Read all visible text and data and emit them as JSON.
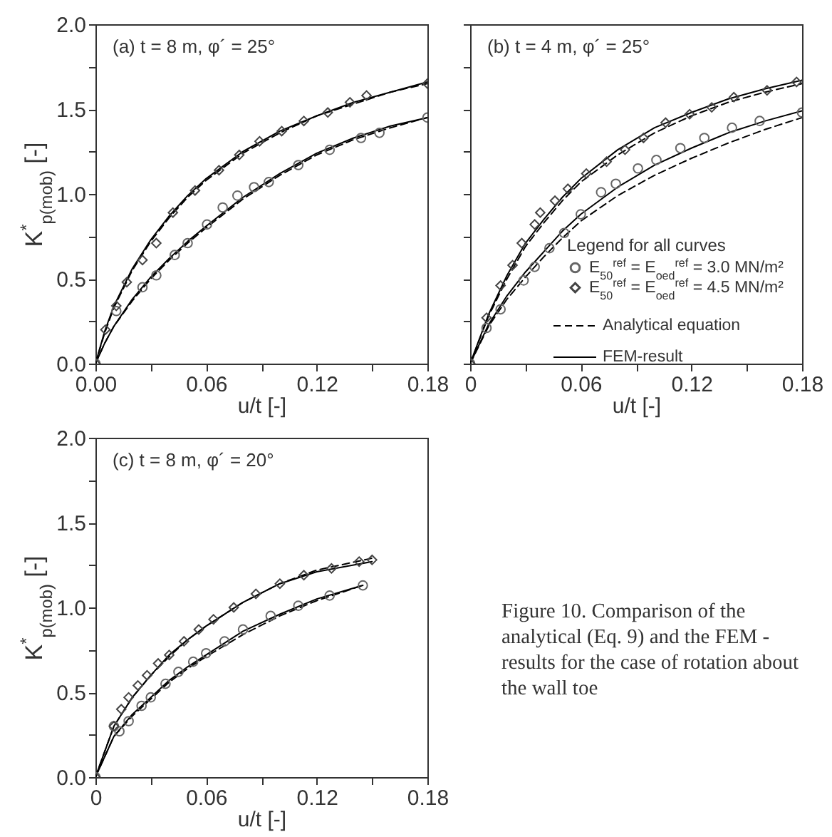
{
  "chart_data": [
    {
      "type": "line",
      "xlabel": "u/t  [-]",
      "ylabel": "K$^{*}$$_{p(mob)}$  [-]",
      "annotations": [
        "(a) t = 8 m, φ´ = 25°"
      ],
      "xlim": [
        0,
        0.18
      ],
      "ylim": [
        0,
        2
      ],
      "xticks": [
        {
          "value": 0,
          "label": "0.00"
        },
        {
          "value": 0.03,
          "label": null
        },
        0.06,
        {
          "value": 0.09,
          "label": null
        },
        0.12,
        {
          "value": 0.15,
          "label": null
        },
        0.18
      ],
      "yticks": [
        {
          "value": 0,
          "label": "0.0"
        },
        {
          "value": 0.25,
          "label": null
        },
        0.5,
        {
          "value": 0.75,
          "label": null
        },
        {
          "value": 1,
          "label": "1.0"
        },
        {
          "value": 1.25,
          "label": null
        },
        1.5,
        {
          "value": 1.75,
          "label": null
        },
        {
          "value": 2,
          "label": "2.0"
        }
      ],
      "series": [
        {
          "type": "scatter",
          "marker": "circle",
          "color": "#666666",
          "x": [
            0,
            0.0113,
            0.0255,
            0.033,
            0.043,
            0.05,
            0.0605,
            0.069,
            0.077,
            0.086,
            0.094,
            0.11,
            0.127,
            0.144,
            0.154,
            0.18
          ],
          "values": [
            0,
            0.31,
            0.45,
            0.52,
            0.64,
            0.71,
            0.82,
            0.92,
            0.99,
            1.04,
            1.07,
            1.17,
            1.26,
            1.33,
            1.36,
            1.45
          ]
        },
        {
          "type": "scatter",
          "marker": "diamond",
          "color": "#444444",
          "x": [
            0,
            0.0054,
            0.0113,
            0.017,
            0.0255,
            0.033,
            0.042,
            0.054,
            0.067,
            0.078,
            0.089,
            0.101,
            0.113,
            0.126,
            0.138,
            0.147,
            0.18
          ],
          "values": [
            0,
            0.2,
            0.34,
            0.48,
            0.61,
            0.71,
            0.89,
            1.02,
            1.14,
            1.23,
            1.31,
            1.37,
            1.43,
            1.48,
            1.54,
            1.58,
            1.65
          ]
        },
        {
          "type": "line",
          "line_style": "dashed",
          "color": "#000000",
          "x": [
            0,
            0.005,
            0.01,
            0.02,
            0.03,
            0.04,
            0.05,
            0.06,
            0.08,
            0.1,
            0.12,
            0.14,
            0.16,
            0.18
          ],
          "values": [
            0,
            0.12,
            0.22,
            0.37,
            0.5,
            0.61,
            0.71,
            0.8,
            0.97,
            1.11,
            1.23,
            1.32,
            1.39,
            1.45
          ]
        },
        {
          "type": "line",
          "line_style": "dashed",
          "color": "#000000",
          "x": [
            0,
            0.005,
            0.01,
            0.02,
            0.03,
            0.04,
            0.05,
            0.06,
            0.08,
            0.1,
            0.12,
            0.14,
            0.16,
            0.18
          ],
          "values": [
            0,
            0.18,
            0.33,
            0.55,
            0.72,
            0.86,
            0.98,
            1.08,
            1.24,
            1.36,
            1.46,
            1.53,
            1.6,
            1.65
          ]
        },
        {
          "type": "line",
          "line_style": "solid",
          "color": "#000000",
          "x": [
            0,
            0.005,
            0.01,
            0.02,
            0.03,
            0.04,
            0.05,
            0.06,
            0.08,
            0.1,
            0.12,
            0.14,
            0.16,
            0.18
          ],
          "values": [
            0,
            0.12,
            0.22,
            0.38,
            0.51,
            0.62,
            0.72,
            0.81,
            0.98,
            1.12,
            1.24,
            1.33,
            1.4,
            1.45
          ]
        },
        {
          "type": "line",
          "line_style": "solid",
          "color": "#000000",
          "x": [
            0,
            0.005,
            0.01,
            0.02,
            0.03,
            0.04,
            0.05,
            0.06,
            0.08,
            0.1,
            0.12,
            0.14,
            0.16,
            0.18
          ],
          "values": [
            0,
            0.19,
            0.34,
            0.56,
            0.73,
            0.87,
            0.99,
            1.09,
            1.25,
            1.37,
            1.46,
            1.54,
            1.6,
            1.66
          ]
        }
      ]
    },
    {
      "type": "line",
      "xlabel": "u/t  [-]",
      "annotations": [
        "(b) t = 4 m, φ´ = 25°"
      ],
      "legend": "bottom right",
      "legend_title": "Legend for all curves",
      "tick_labels": "x",
      "xlim": [
        0,
        0.18
      ],
      "ylim": [
        0,
        2
      ],
      "xticks": [
        0,
        {
          "value": 0.03,
          "label": null
        },
        0.06,
        {
          "value": 0.09,
          "label": null
        },
        0.12,
        {
          "value": 0.15,
          "label": null
        },
        0.18
      ],
      "yticks": [
        0,
        0.25,
        0.5,
        0.75,
        1,
        1.25,
        1.5,
        1.75,
        2
      ],
      "series": [
        {
          "name": "E$_{50}$$^{ref}$ = E$_{oed}$$^{ref}$ = 3.0 MN/m²",
          "type": "scatter",
          "marker": "circle",
          "color": "#666666",
          "x": [
            0,
            0.0089,
            0.0165,
            0.029,
            0.035,
            0.043,
            0.051,
            0.06,
            0.071,
            0.079,
            0.091,
            0.101,
            0.114,
            0.127,
            0.142,
            0.157,
            0.18
          ],
          "values": [
            0,
            0.21,
            0.32,
            0.49,
            0.57,
            0.68,
            0.77,
            0.88,
            1.01,
            1.06,
            1.15,
            1.2,
            1.27,
            1.33,
            1.39,
            1.43,
            1.48
          ]
        },
        {
          "name": "E$_{50}$$^{ref}$ = E$_{oed}$$^{ref}$ = 4.5 MN/m²",
          "type": "scatter",
          "marker": "diamond",
          "color": "#444444",
          "x": [
            0,
            0.0089,
            0.0165,
            0.023,
            0.028,
            0.035,
            0.038,
            0.046,
            0.053,
            0.063,
            0.074,
            0.084,
            0.094,
            0.106,
            0.119,
            0.131,
            0.143,
            0.161,
            0.177
          ],
          "values": [
            0,
            0.27,
            0.46,
            0.58,
            0.71,
            0.82,
            0.89,
            0.96,
            1.03,
            1.12,
            1.19,
            1.26,
            1.33,
            1.42,
            1.47,
            1.51,
            1.57,
            1.61,
            1.66
          ]
        },
        {
          "name": "Analytical equation",
          "type": "line",
          "line_style": "dashed",
          "color": "#000000",
          "x": [
            0,
            0.01,
            0.02,
            0.03,
            0.04,
            0.05,
            0.06,
            0.08,
            0.1,
            0.12,
            0.14,
            0.16,
            0.18
          ],
          "values": [
            0,
            0.22,
            0.38,
            0.51,
            0.63,
            0.74,
            0.84,
            0.99,
            1.11,
            1.21,
            1.3,
            1.38,
            1.45
          ]
        },
        {
          "type": "line",
          "line_style": "dashed",
          "color": "#000000",
          "x": [
            0,
            0.01,
            0.02,
            0.03,
            0.04,
            0.05,
            0.06,
            0.08,
            0.1,
            0.12,
            0.14,
            0.16,
            0.18
          ],
          "values": [
            0,
            0.28,
            0.5,
            0.69,
            0.83,
            0.96,
            1.07,
            1.23,
            1.36,
            1.46,
            1.54,
            1.6,
            1.65
          ]
        },
        {
          "name": "FEM-result",
          "type": "line",
          "line_style": "solid",
          "color": "#000000",
          "x": [
            0,
            0.01,
            0.02,
            0.03,
            0.04,
            0.05,
            0.06,
            0.08,
            0.1,
            0.12,
            0.14,
            0.16,
            0.18
          ],
          "values": [
            0,
            0.23,
            0.4,
            0.54,
            0.66,
            0.78,
            0.88,
            1.04,
            1.17,
            1.27,
            1.36,
            1.43,
            1.49
          ]
        },
        {
          "type": "line",
          "line_style": "solid",
          "color": "#000000",
          "x": [
            0,
            0.01,
            0.02,
            0.03,
            0.04,
            0.05,
            0.06,
            0.08,
            0.1,
            0.12,
            0.14,
            0.16,
            0.18
          ],
          "values": [
            0,
            0.29,
            0.52,
            0.71,
            0.85,
            0.98,
            1.09,
            1.26,
            1.39,
            1.48,
            1.56,
            1.62,
            1.67
          ]
        }
      ]
    },
    {
      "type": "line",
      "xlabel": "u/t  [-]",
      "ylabel": "K$^{*}$$_{p(mob)}$  [-]",
      "annotations": [
        "(c) t = 8 m, φ´ = 20°",
        "Figure 10. Comparison of the analytical (Eq. 9) and the FEM - results for the case of rotation about the wall toe"
      ],
      "xlim": [
        0,
        0.18
      ],
      "ylim": [
        0,
        2
      ],
      "xticks": [
        0,
        {
          "value": 0.03,
          "label": null
        },
        0.06,
        {
          "value": 0.09,
          "label": null
        },
        0.12,
        {
          "value": 0.15,
          "label": null
        },
        0.18
      ],
      "yticks": [
        {
          "value": 0,
          "label": "0.0"
        },
        {
          "value": 0.25,
          "label": null
        },
        0.5,
        {
          "value": 0.75,
          "label": null
        },
        {
          "value": 1,
          "label": "1.0"
        },
        {
          "value": 1.25,
          "label": null
        },
        1.5,
        {
          "value": 1.75,
          "label": null
        },
        {
          "value": 2,
          "label": "2.0"
        }
      ],
      "series": [
        {
          "type": "scatter",
          "marker": "circle",
          "color": "#666666",
          "x": [
            0,
            0.01,
            0.013,
            0.018,
            0.025,
            0.03,
            0.038,
            0.045,
            0.053,
            0.06,
            0.07,
            0.08,
            0.095,
            0.11,
            0.127,
            0.145
          ],
          "values": [
            0,
            0.3,
            0.27,
            0.33,
            0.42,
            0.47,
            0.55,
            0.62,
            0.68,
            0.73,
            0.8,
            0.87,
            0.95,
            1.01,
            1.07,
            1.13
          ]
        },
        {
          "type": "scatter",
          "marker": "diamond",
          "color": "#444444",
          "x": [
            0,
            0.01,
            0.014,
            0.018,
            0.023,
            0.028,
            0.034,
            0.04,
            0.048,
            0.056,
            0.064,
            0.075,
            0.087,
            0.1,
            0.113,
            0.128,
            0.143,
            0.15
          ],
          "values": [
            0,
            0.3,
            0.4,
            0.47,
            0.54,
            0.6,
            0.67,
            0.72,
            0.8,
            0.87,
            0.93,
            1,
            1.08,
            1.14,
            1.19,
            1.23,
            1.27,
            1.28
          ]
        },
        {
          "type": "line",
          "line_style": "dashed",
          "color": "#000000",
          "x": [
            0,
            0.01,
            0.02,
            0.03,
            0.04,
            0.05,
            0.06,
            0.08,
            0.1,
            0.12,
            0.145
          ],
          "values": [
            0,
            0.24,
            0.36,
            0.46,
            0.56,
            0.64,
            0.71,
            0.84,
            0.95,
            1.04,
            1.13
          ]
        },
        {
          "type": "line",
          "line_style": "dashed",
          "color": "#000000",
          "x": [
            0,
            0.01,
            0.02,
            0.03,
            0.04,
            0.05,
            0.06,
            0.08,
            0.1,
            0.12,
            0.15
          ],
          "values": [
            0,
            0.3,
            0.47,
            0.6,
            0.71,
            0.81,
            0.89,
            1.03,
            1.14,
            1.22,
            1.29
          ]
        },
        {
          "type": "line",
          "line_style": "solid",
          "color": "#000000",
          "x": [
            0,
            0.01,
            0.02,
            0.03,
            0.04,
            0.05,
            0.06,
            0.08,
            0.1,
            0.12,
            0.145
          ],
          "values": [
            0,
            0.24,
            0.37,
            0.47,
            0.57,
            0.65,
            0.72,
            0.86,
            0.96,
            1.05,
            1.13
          ]
        },
        {
          "type": "line",
          "line_style": "solid",
          "color": "#000000",
          "x": [
            0,
            0.01,
            0.02,
            0.03,
            0.04,
            0.05,
            0.06,
            0.08,
            0.1,
            0.12,
            0.15
          ],
          "values": [
            0,
            0.3,
            0.47,
            0.6,
            0.72,
            0.81,
            0.89,
            1.03,
            1.14,
            1.21,
            1.27
          ]
        }
      ]
    }
  ]
}
